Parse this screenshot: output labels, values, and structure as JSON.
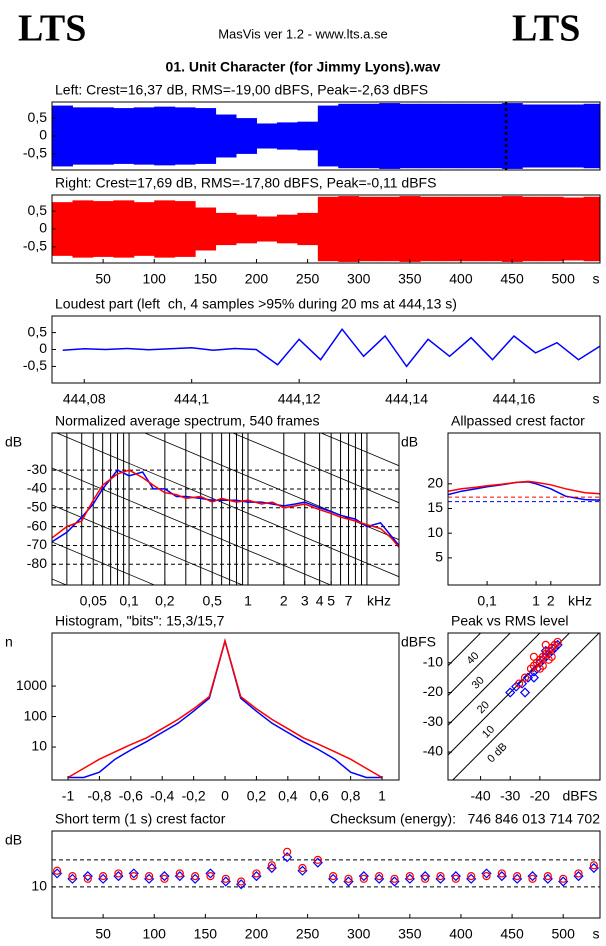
{
  "header": {
    "logo_left": "LTS",
    "logo_right": "LTS",
    "app": "MasVis ver 1.2 - www.lts.a.se",
    "file": "01. Unit Character (for Jimmy Lyons).wav"
  },
  "chart_data": [
    {
      "type": "wave",
      "title": "Left: Crest=16,37 dB, RMS=-19,00 dBFS, Peak=-2,63 dBFS",
      "xlim": [
        0,
        536
      ],
      "ylim": [
        -0.95,
        0.95
      ],
      "yticks": [
        {
          "value": 0.5,
          "label": "0,5"
        },
        0,
        {
          "value": -0.5,
          "label": "-0,5"
        }
      ],
      "marker_x": 444.13,
      "series": [
        {
          "color": "#0000ff",
          "x": [
            10,
            30,
            50,
            70,
            90,
            110,
            130,
            150,
            170,
            190,
            210,
            230,
            250,
            270,
            290,
            310,
            330,
            350,
            370,
            390,
            410,
            430,
            450,
            470,
            490,
            510,
            530
          ],
          "values": [
            0.85,
            0.8,
            0.8,
            0.78,
            0.8,
            0.82,
            0.8,
            0.78,
            0.6,
            0.5,
            0.35,
            0.38,
            0.4,
            0.85,
            0.9,
            0.9,
            0.92,
            0.9,
            0.9,
            0.9,
            0.9,
            0.9,
            0.92,
            0.88,
            0.88,
            0.88,
            0.9
          ]
        }
      ]
    },
    {
      "type": "wave",
      "title": "Right: Crest=17,69 dB, RMS=-17,80 dBFS, Peak=-0,11 dBFS",
      "xlim": [
        0,
        536
      ],
      "ylim": [
        -0.95,
        0.95
      ],
      "yticks": [
        {
          "value": 0.5,
          "label": "0,5"
        },
        0,
        {
          "value": -0.5,
          "label": "-0,5"
        }
      ],
      "xticks": [
        50,
        100,
        150,
        200,
        250,
        300,
        350,
        400,
        450,
        500
      ],
      "xlabel": "s",
      "series": [
        {
          "color": "#ff0000",
          "x": [
            10,
            30,
            50,
            70,
            90,
            110,
            130,
            150,
            170,
            190,
            210,
            230,
            250,
            270,
            290,
            310,
            330,
            350,
            370,
            390,
            410,
            430,
            450,
            470,
            490,
            510,
            530
          ],
          "values": [
            0.75,
            0.8,
            0.78,
            0.8,
            0.75,
            0.8,
            0.78,
            0.6,
            0.45,
            0.4,
            0.35,
            0.4,
            0.45,
            0.9,
            0.92,
            0.9,
            0.9,
            0.92,
            0.9,
            0.9,
            0.9,
            0.9,
            0.92,
            0.9,
            0.9,
            0.88,
            0.9
          ]
        }
      ]
    },
    {
      "type": "line",
      "title": "Loudest part (left  ch, 4 samples >95% during 20 ms at 444,13 s)",
      "xlim": [
        444.074,
        444.176
      ],
      "ylim": [
        -0.99,
        0.99
      ],
      "yticks": [
        {
          "value": 0.5,
          "label": "0,5"
        },
        0,
        {
          "value": -0.5,
          "label": "-0,5"
        }
      ],
      "xticks": [
        {
          "value": 444.08,
          "label": "444,08"
        },
        {
          "value": 444.1,
          "label": "444,1"
        },
        {
          "value": 444.12,
          "label": "444,12"
        },
        {
          "value": 444.14,
          "label": "444,14"
        },
        {
          "value": 444.16,
          "label": "444,16"
        }
      ],
      "xlabel": "s",
      "x": [
        444.076,
        444.08,
        444.084,
        444.088,
        444.092,
        444.096,
        444.1,
        444.104,
        444.108,
        444.112,
        444.116,
        444.12,
        444.124,
        444.128,
        444.132,
        444.136,
        444.14,
        444.144,
        444.148,
        444.152,
        444.156,
        444.16,
        444.164,
        444.168,
        444.172,
        444.176
      ],
      "series": [
        {
          "color": "#0000ff",
          "values": [
            -0.02,
            0.02,
            0.0,
            0.03,
            -0.01,
            0.02,
            0.05,
            -0.02,
            0.03,
            0.0,
            -0.45,
            0.3,
            -0.3,
            0.6,
            -0.2,
            0.4,
            -0.5,
            0.3,
            -0.2,
            0.35,
            -0.3,
            0.4,
            -0.1,
            0.2,
            -0.3,
            0.1
          ]
        }
      ]
    },
    {
      "type": "line",
      "title": "Normalized average spectrum, 540 frames",
      "ylabel": "dB",
      "xlabel": "kHz",
      "log_x": true,
      "xlim": [
        0.0225,
        18.6
      ],
      "ylim": [
        -91,
        -10.3
      ],
      "yticks": [
        -30,
        -40,
        -50,
        -60,
        -70,
        -80
      ],
      "grid_y": true,
      "slope_lines": true,
      "xticks": [
        {
          "value": 0.05,
          "label": "0,05"
        },
        {
          "value": 0.1,
          "label": "0,1"
        },
        {
          "value": 0.2,
          "label": "0,2"
        },
        {
          "value": 0.5,
          "label": "0,5"
        },
        1,
        2,
        3,
        4,
        5,
        7
      ],
      "xgrid": [
        0.03,
        0.04,
        0.05,
        0.06,
        0.07,
        0.08,
        0.09,
        0.1,
        0.2,
        0.3,
        0.4,
        0.5,
        0.6,
        0.7,
        0.8,
        0.9,
        1,
        2,
        3,
        4,
        5,
        6,
        7,
        8,
        9,
        10
      ],
      "x": [
        0.0225,
        0.03,
        0.04,
        0.05,
        0.06,
        0.08,
        0.1,
        0.13,
        0.16,
        0.2,
        0.25,
        0.3,
        0.4,
        0.5,
        0.6,
        0.8,
        1,
        1.3,
        1.6,
        2,
        2.5,
        3,
        4,
        5,
        6,
        8,
        10,
        13,
        16,
        18.6
      ],
      "series": [
        {
          "color": "#0000ff",
          "values": [
            -68,
            -63,
            -55,
            -48,
            -40,
            -30,
            -33,
            -31,
            -40,
            -40,
            -44,
            -44,
            -45,
            -46,
            -46,
            -46,
            -47,
            -47,
            -48,
            -49,
            -48,
            -47,
            -50,
            -52,
            -54,
            -56,
            -60,
            -58,
            -65,
            -70
          ]
        },
        {
          "color": "#ff0000",
          "values": [
            -66,
            -60,
            -57,
            -46,
            -38,
            -32,
            -30,
            -34,
            -38,
            -42,
            -43,
            -45,
            -44,
            -47,
            -45,
            -47,
            -46,
            -48,
            -47,
            -50,
            -49,
            -48,
            -51,
            -53,
            -55,
            -57,
            -59,
            -61,
            -66,
            -71
          ]
        }
      ]
    },
    {
      "type": "line",
      "title": "Allpassed crest factor",
      "ylabel": "dB",
      "xlabel": "kHz",
      "log_x": true,
      "xlim": [
        0.0159,
        20.2
      ],
      "ylim": [
        -0.5,
        30.3
      ],
      "yticks": [
        20,
        15,
        10,
        5
      ],
      "xticks": [
        {
          "value": 0.1,
          "label": "0,1"
        },
        1,
        2
      ],
      "x": [
        0.0159,
        0.03,
        0.06,
        0.1,
        0.2,
        0.4,
        0.7,
        1,
        2,
        4,
        10,
        20.2
      ],
      "series": [
        {
          "color": "#0000ff",
          "crest": 16.4,
          "values": [
            17.8,
            18.5,
            19,
            19.4,
            19.8,
            20.3,
            20.4,
            20,
            19,
            17.5,
            16.8,
            16.7
          ]
        },
        {
          "color": "#ff0000",
          "crest": 17.3,
          "values": [
            18.5,
            19,
            19.3,
            19.6,
            19.9,
            20.3,
            20.5,
            20.3,
            19.8,
            19,
            18.2,
            18
          ]
        }
      ]
    },
    {
      "type": "line",
      "title": "Histogram, \"bits\": 15,3/15,7",
      "ylabel": "n",
      "log_y": true,
      "xlim": [
        -1.102,
        1.108
      ],
      "ylim": [
        0.83,
        55000
      ],
      "yticks": [
        10,
        100,
        1000
      ],
      "xticks": [
        -1,
        {
          "value": -0.8,
          "label": "-0,8"
        },
        {
          "value": -0.6,
          "label": "-0,6"
        },
        {
          "value": -0.4,
          "label": "-0,4"
        },
        {
          "value": -0.2,
          "label": "-0,2"
        },
        0,
        {
          "value": 0.2,
          "label": "0,2"
        },
        {
          "value": 0.4,
          "label": "0,4"
        },
        {
          "value": 0.6,
          "label": "0,6"
        },
        {
          "value": 0.8,
          "label": "0,8"
        },
        1
      ],
      "x": [
        -1,
        -0.9,
        -0.8,
        -0.7,
        -0.6,
        -0.5,
        -0.4,
        -0.3,
        -0.2,
        -0.1,
        0,
        0.1,
        0.2,
        0.3,
        0.4,
        0.5,
        0.6,
        0.7,
        0.8,
        0.9,
        1
      ],
      "series": [
        {
          "color": "#0000ff",
          "values": [
            1,
            1,
            1.5,
            4,
            8,
            15,
            30,
            60,
            150,
            400,
            30000,
            400,
            150,
            60,
            30,
            15,
            8,
            4,
            1.5,
            1,
            1
          ]
        },
        {
          "color": "#ff0000",
          "values": [
            1,
            2,
            4,
            7,
            12,
            20,
            40,
            80,
            180,
            450,
            30000,
            450,
            180,
            80,
            40,
            20,
            12,
            7,
            4,
            2,
            1
          ]
        }
      ]
    },
    {
      "type": "scatter",
      "title": "Peak vs RMS level",
      "ylabel": "dBFS",
      "xlabel": "dBFS",
      "xlim": [
        -51,
        0.3
      ],
      "ylim": [
        -49.4,
        0
      ],
      "xticks": [
        -40,
        -30,
        -20
      ],
      "yticks": [
        -10,
        -20,
        -30,
        -40
      ],
      "crest_lines": [
        40,
        30,
        20,
        10,
        {
          "value": 0,
          "label": "0 dB"
        }
      ],
      "series": [
        {
          "color": "#0000ff",
          "marker": "diamond",
          "x": [
            -30,
            -28,
            -26,
            -24,
            -22,
            -21,
            -20,
            -19,
            -18,
            -17,
            -16,
            -15,
            -14,
            -22,
            -25,
            -18
          ],
          "values": [
            -20,
            -18,
            -17,
            -15,
            -13,
            -12,
            -10,
            -9,
            -8,
            -7,
            -6,
            -5,
            -4,
            -15,
            -20,
            -6
          ]
        },
        {
          "color": "#ff0000",
          "marker": "circle",
          "x": [
            -27,
            -25,
            -23,
            -22,
            -21,
            -20,
            -19,
            -18,
            -17,
            -16,
            -15,
            -14,
            -20,
            -19,
            -17,
            -16,
            -22,
            -18
          ],
          "values": [
            -17,
            -15,
            -12,
            -11,
            -10,
            -9,
            -8,
            -7,
            -6,
            -5,
            -4,
            -3,
            -12,
            -11,
            -9,
            -8,
            -8,
            -4
          ]
        }
      ]
    },
    {
      "type": "scatter",
      "title": "Short term (1 s) crest factor",
      "annotation": "Checksum (energy):   746 846 013 714 702",
      "ylabel": "dB",
      "xlabel": "s",
      "xlim": [
        0,
        536
      ],
      "ylim": [
        -1.5,
        30.7
      ],
      "xticks": [
        50,
        100,
        150,
        200,
        250,
        300,
        350,
        400,
        450,
        500
      ],
      "yticks": [
        10
      ],
      "ref_lines": [
        10,
        20
      ],
      "x": [
        5,
        20,
        35,
        50,
        65,
        80,
        95,
        110,
        125,
        140,
        155,
        170,
        185,
        200,
        215,
        230,
        245,
        260,
        275,
        290,
        305,
        320,
        335,
        350,
        365,
        380,
        395,
        410,
        425,
        440,
        455,
        470,
        485,
        500,
        515,
        530
      ],
      "series": [
        {
          "color": "#0000ff",
          "marker": "diamond",
          "values": [
            15,
            13,
            14,
            13,
            14,
            15,
            13,
            14,
            14,
            13,
            15,
            12,
            11,
            14,
            17,
            21,
            16,
            19,
            13,
            12,
            14,
            13,
            12,
            13,
            14,
            13,
            14,
            13,
            15,
            14,
            13,
            14,
            13,
            12,
            14,
            17
          ]
        },
        {
          "color": "#ff0000",
          "marker": "circle",
          "values": [
            16,
            14,
            13,
            14,
            15,
            14,
            14,
            13,
            15,
            14,
            14,
            13,
            12,
            15,
            18,
            23,
            17,
            20,
            14,
            13,
            13,
            14,
            13,
            14,
            13,
            14,
            13,
            14,
            14,
            15,
            14,
            13,
            14,
            13,
            15,
            18
          ]
        }
      ]
    }
  ]
}
